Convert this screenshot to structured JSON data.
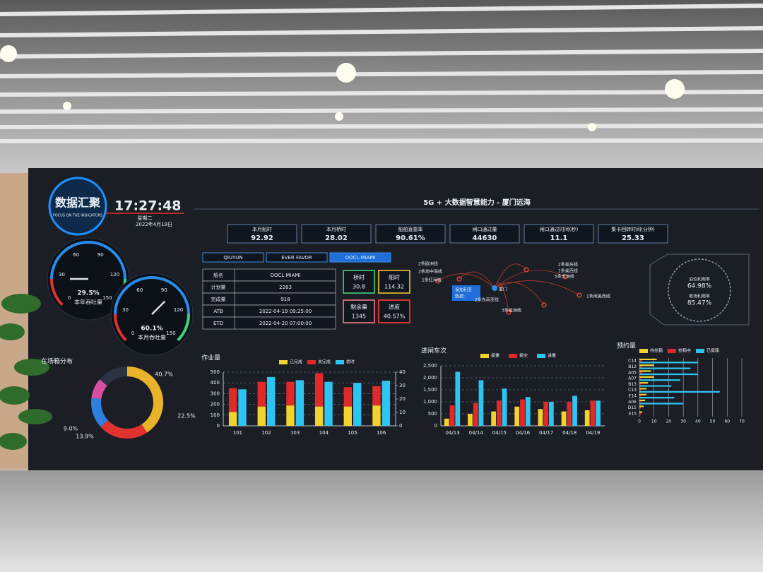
{
  "header": {
    "title": "数据汇聚",
    "subtitle": "FOCUS ON THE INDICATORS",
    "time": "17:27:48",
    "weekday": "星期二",
    "date": "2022年4月19日",
    "main_title": "5G + 大数据智慧能力 - 厦门远海"
  },
  "kpis": [
    {
      "label": "本月船时",
      "value": "92.92"
    },
    {
      "label": "本月桥时",
      "value": "28.02"
    },
    {
      "label": "船舶直靠率",
      "value": "90.61%"
    },
    {
      "label": "闸口通过量",
      "value": "44630"
    },
    {
      "label": "闸口通过时间(秒)",
      "value": "11.1"
    },
    {
      "label": "集卡回转时间(分钟)",
      "value": "25.33"
    }
  ],
  "tabs": [
    "QIUYUN",
    "EVER FAVOR",
    "OOCL MIAMI"
  ],
  "ship_table": {
    "rows": [
      [
        "船名",
        "OOCL MIAMI"
      ],
      [
        "计划量",
        "2263"
      ],
      [
        "完成量",
        "918"
      ],
      [
        "ATB",
        "2022-04-19 09:25:00"
      ],
      [
        "ETD",
        "2022-04-20 07:00:00"
      ]
    ]
  },
  "stat_boxes": [
    {
      "label": "桥时",
      "value": "30.8",
      "color": "#3fd27a"
    },
    {
      "label": "船时",
      "value": "114.32",
      "color": "#f2c230"
    },
    {
      "label": "剩余量",
      "value": "1345",
      "color": "#f07a8a"
    },
    {
      "label": "进度",
      "value": "40.57%",
      "color": "#ff3b30"
    }
  ],
  "gauges": [
    {
      "label": "本年吞吐量",
      "value": "29.5%",
      "ticks": [
        "0",
        "30",
        "60",
        "90",
        "120",
        "150"
      ]
    },
    {
      "label": "本月吞吐量",
      "value": "60.1%",
      "ticks": [
        "0",
        "30",
        "60",
        "90",
        "120",
        "150"
      ]
    }
  ],
  "map_labels": [
    "2条欧洲线",
    "2条地中海线",
    "1条红海线",
    "保加利亚",
    "数据:",
    "厦门",
    "2条东南亚线",
    "3条美洲线",
    "2条美东线",
    "1条美西线",
    "5条非洲线",
    "1条南美西线"
  ],
  "utilization": [
    {
      "label": "泊位利用率",
      "value": "64.98%"
    },
    {
      "label": "堆场利用率",
      "value": "85.47%"
    }
  ],
  "charts": {
    "containers": {
      "type": "pie",
      "title": "在场箱分布",
      "values": [
        40.7,
        22.5,
        13.9,
        9.0
      ],
      "value_labels": [
        "40.7%",
        "22.5%",
        "13.9%",
        "9.0%"
      ],
      "colors": [
        "#e8b22a",
        "#e0332f",
        "#2d7fe0",
        "#d94fa0"
      ]
    },
    "workload": {
      "type": "bar",
      "title": "作业量",
      "categories": [
        "101",
        "102",
        "103",
        "104",
        "105",
        "106"
      ],
      "series": [
        {
          "name": "已完成",
          "color": "#f2d22e",
          "values": [
            130,
            180,
            190,
            180,
            180,
            190
          ]
        },
        {
          "name": "未完成",
          "color": "#e02a2a",
          "values": [
            220,
            230,
            220,
            310,
            180,
            180
          ]
        },
        {
          "name": "桥时",
          "color": "#2ec4f2",
          "values": [
            27.2,
            36.4,
            34,
            32.8,
            32,
            33.6
          ],
          "axis": "y2"
        }
      ],
      "stacked": true,
      "ylim": [
        0,
        500
      ],
      "yticks": [
        0,
        100,
        200,
        300,
        400,
        500
      ],
      "y2lim": [
        0,
        40
      ],
      "y2ticks": [
        0,
        10,
        20,
        30,
        40
      ]
    },
    "gate": {
      "type": "bar",
      "title": "进闸车次",
      "categories": [
        "04/13",
        "04/14",
        "04/15",
        "04/16",
        "04/17",
        "04/18",
        "04/19"
      ],
      "series": [
        {
          "name": "提重",
          "color": "#f2d22e",
          "values": [
            300,
            500,
            600,
            800,
            700,
            600,
            650
          ]
        },
        {
          "name": "提空",
          "color": "#e02a2a",
          "values": [
            850,
            950,
            1050,
            1100,
            1000,
            1000,
            1050
          ]
        },
        {
          "name": "进重",
          "color": "#2ec4f2",
          "values": [
            2250,
            1900,
            1550,
            1200,
            1000,
            1250,
            1050
          ]
        }
      ],
      "ylim": [
        0,
        2500
      ],
      "yticks": [
        0,
        500,
        {
          "value": 1000,
          "label": "1,000"
        },
        {
          "value": 1500,
          "label": "1,500"
        },
        {
          "value": 2000,
          "label": "2,000"
        },
        {
          "value": 2500,
          "label": "2,500"
        }
      ]
    },
    "booking": {
      "type": "hbar",
      "title": "预约量",
      "categories": [
        "C14",
        "B12",
        "A05",
        "A07",
        "B13",
        "C13",
        "E14",
        "A06",
        "D15",
        "E15"
      ],
      "series": [
        {
          "name": "待控箱",
          "color": "#f2d22e",
          "values": [
            12,
            10,
            8,
            10,
            6,
            5,
            5,
            4,
            3,
            2
          ]
        },
        {
          "name": "控箱中",
          "color": "#e02a2a",
          "values": [
            2,
            2,
            2,
            1,
            1,
            1,
            1,
            1,
            1,
            1
          ]
        },
        {
          "name": "已提箱",
          "color": "#2ec4f2",
          "values": [
            40,
            35,
            40,
            28,
            22,
            55,
            24,
            30,
            0,
            0
          ]
        }
      ],
      "xlim": [
        0,
        70
      ],
      "xticks": [
        0,
        10,
        20,
        30,
        40,
        50,
        60,
        70
      ]
    }
  }
}
